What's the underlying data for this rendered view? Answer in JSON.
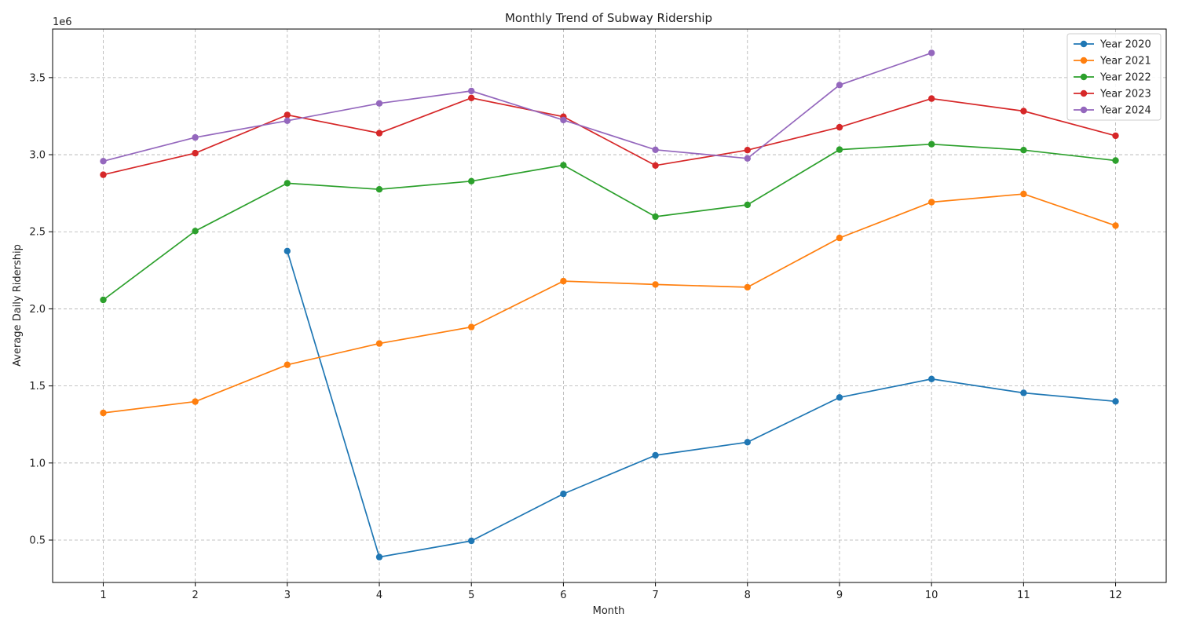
{
  "chart_data": {
    "type": "line",
    "title": "Monthly Trend of Subway Ridership",
    "xlabel": "Month",
    "ylabel": "Average Daily Ridership",
    "y_offset_label": "1e6",
    "x": [
      1,
      2,
      3,
      4,
      5,
      6,
      7,
      8,
      9,
      10,
      11,
      12
    ],
    "x_ticks": [
      "1",
      "2",
      "3",
      "4",
      "5",
      "6",
      "7",
      "8",
      "9",
      "10",
      "11",
      "12"
    ],
    "y_ticks": [
      "0.5",
      "1.0",
      "1.5",
      "2.0",
      "2.5",
      "3.0",
      "3.5"
    ],
    "y_tick_values": [
      500000,
      1000000,
      1500000,
      2000000,
      2500000,
      3000000,
      3500000
    ],
    "xlim": [
      0.45,
      12.55
    ],
    "ylim": [
      225000,
      3815000
    ],
    "grid": true,
    "legend_position": "top-right",
    "series": [
      {
        "name": "Year 2020",
        "color": "#1f77b4",
        "values": [
          null,
          null,
          2375000,
          390000,
          495000,
          800000,
          1050000,
          1135000,
          1425000,
          1545000,
          1455000,
          1400000
        ]
      },
      {
        "name": "Year 2021",
        "color": "#ff7f0e",
        "values": [
          1325000,
          1398000,
          1637000,
          1775000,
          1882000,
          2180000,
          2158000,
          2140000,
          2460000,
          2692000,
          2745000,
          2540000
        ]
      },
      {
        "name": "Year 2022",
        "color": "#2ca02c",
        "values": [
          2058000,
          2505000,
          2815000,
          2775000,
          2828000,
          2932000,
          2598000,
          2675000,
          3033000,
          3068000,
          3030000,
          2962000
        ]
      },
      {
        "name": "Year 2023",
        "color": "#d62728",
        "values": [
          2870000,
          3010000,
          3258000,
          3140000,
          3368000,
          3246000,
          2930000,
          3030000,
          3178000,
          3364000,
          3283000,
          3123000
        ]
      },
      {
        "name": "Year 2024",
        "color": "#9467bd",
        "values": [
          2958000,
          3112000,
          3220000,
          3333000,
          3413000,
          3225000,
          3032000,
          2976000,
          3452000,
          3660000,
          null,
          null
        ]
      }
    ]
  }
}
